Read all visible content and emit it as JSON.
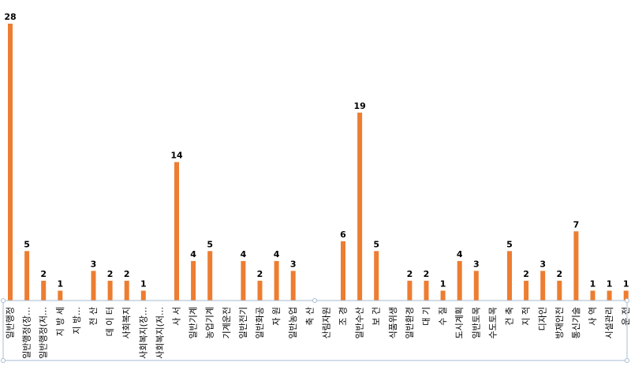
{
  "chart_data": {
    "type": "bar",
    "categories": [
      "일반행정",
      "일반행정(장…",
      "일반행정(저…",
      "지 방 세",
      "지 방…",
      "전 산",
      "데 이 터",
      "사회복지",
      "사회복지(장…",
      "사회복지(저…",
      "사 서",
      "일반기계",
      "농업기계",
      "기계운전",
      "일반전기",
      "일반화공",
      "자 원",
      "일반농업",
      "축 산",
      "산림자원",
      "조 경",
      "일반수산",
      "보 건",
      "식품위생",
      "일반환경",
      "대 기",
      "수 질",
      "도시계획",
      "일반토목",
      "수도토목",
      "건 축",
      "지 적",
      "디자인",
      "방재안전",
      "통신기술",
      "사 역",
      "시설관리",
      "운 전"
    ],
    "values": [
      28,
      5,
      2,
      1,
      null,
      3,
      2,
      2,
      1,
      null,
      14,
      4,
      5,
      null,
      4,
      2,
      4,
      3,
      null,
      null,
      6,
      19,
      5,
      null,
      2,
      2,
      1,
      4,
      3,
      null,
      5,
      2,
      3,
      2,
      7,
      1,
      1,
      1
    ],
    "ylim": [
      0,
      28
    ],
    "grid": false,
    "legend": "none",
    "colors": {
      "bar": "#ED7D31",
      "border": "#A6BCD3",
      "axis": "#A6A6A6"
    }
  }
}
